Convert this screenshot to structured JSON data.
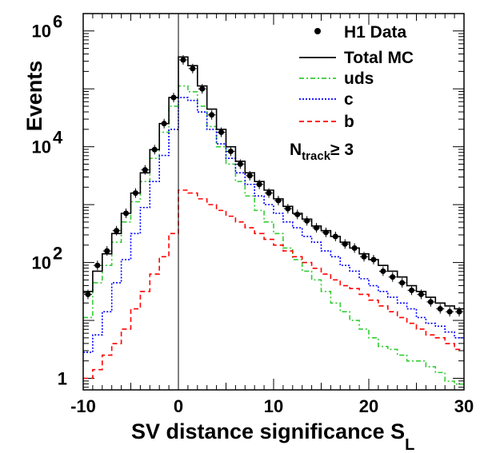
{
  "chart_data": {
    "type": "line",
    "xlabel": "SV distance significance S",
    "xlabel_sub": "L",
    "ylabel": "Events",
    "xlim": [
      -10,
      30
    ],
    "ylim_log10": [
      -0.2,
      6.3
    ],
    "yscale": "log",
    "legend_position": "top-right",
    "x_ticks": [
      {
        "value": -10,
        "label": "-10"
      },
      {
        "value": 0,
        "label": "0"
      },
      {
        "value": 10,
        "label": "10"
      },
      {
        "value": 20,
        "label": "20"
      },
      {
        "value": 30,
        "label": "30"
      }
    ],
    "y_ticks": [
      {
        "exp": 0,
        "base": "1",
        "sup": ""
      },
      {
        "exp": 2,
        "base": "10",
        "sup": "2"
      },
      {
        "exp": 4,
        "base": "10",
        "sup": "4"
      },
      {
        "exp": 6,
        "base": "10",
        "sup": "6"
      }
    ],
    "bin_edges": [
      -10,
      -9,
      -8,
      -7,
      -6,
      -5,
      -4,
      -3,
      -2,
      -1,
      0,
      1,
      2,
      3,
      4,
      5,
      6,
      7,
      8,
      9,
      10,
      11,
      12,
      13,
      14,
      15,
      16,
      17,
      18,
      19,
      20,
      21,
      22,
      23,
      24,
      25,
      26,
      27,
      28,
      29,
      30
    ],
    "series": [
      {
        "name": "H1 Data",
        "style": "points",
        "color": "#000000",
        "log10": [
          1.45,
          1.95,
          2.2,
          2.55,
          2.85,
          3.2,
          3.6,
          3.95,
          4.4,
          4.85,
          5.5,
          5.35,
          5.0,
          4.55,
          4.25,
          3.92,
          3.7,
          3.5,
          3.35,
          3.2,
          3.07,
          2.93,
          2.83,
          2.72,
          2.6,
          2.52,
          2.45,
          2.32,
          2.25,
          2.1,
          2.05,
          1.85,
          1.75,
          1.65,
          1.52,
          1.45,
          1.32,
          1.2,
          1.15,
          1.15
        ]
      },
      {
        "name": "Total MC",
        "style": "solid",
        "color": "#000000",
        "log10": [
          1.5,
          1.85,
          2.15,
          2.5,
          2.85,
          3.2,
          3.55,
          3.95,
          4.4,
          4.85,
          5.55,
          5.4,
          5.05,
          4.65,
          4.3,
          4.0,
          3.75,
          3.55,
          3.4,
          3.25,
          3.1,
          2.97,
          2.85,
          2.75,
          2.63,
          2.55,
          2.45,
          2.35,
          2.25,
          2.15,
          2.05,
          1.95,
          1.85,
          1.75,
          1.6,
          1.5,
          1.4,
          1.3,
          1.25,
          1.2
        ]
      },
      {
        "name": "uds",
        "style": "dashdot",
        "color": "#33cc33",
        "log10": [
          1.05,
          1.65,
          1.95,
          2.35,
          2.7,
          3.05,
          3.4,
          3.8,
          4.25,
          4.7,
          5.05,
          4.95,
          4.7,
          4.35,
          4.0,
          3.7,
          3.4,
          3.15,
          2.9,
          2.7,
          2.5,
          2.25,
          2.05,
          1.85,
          1.7,
          1.5,
          1.3,
          1.15,
          1.0,
          0.85,
          0.7,
          0.55,
          0.5,
          0.4,
          0.3,
          0.3,
          0.2,
          0.1,
          -0.05,
          -0.1
        ]
      },
      {
        "name": "c",
        "style": "dotted",
        "color": "#0000ff",
        "log10": [
          0.45,
          0.75,
          1.15,
          1.65,
          2.05,
          2.5,
          2.95,
          3.4,
          3.85,
          4.3,
          4.85,
          4.8,
          4.6,
          4.3,
          4.05,
          3.8,
          3.55,
          3.35,
          3.15,
          3.0,
          2.85,
          2.7,
          2.6,
          2.45,
          2.35,
          2.2,
          2.1,
          1.95,
          1.85,
          1.72,
          1.6,
          1.5,
          1.4,
          1.3,
          1.2,
          1.05,
          0.95,
          0.9,
          0.8,
          0.7
        ]
      },
      {
        "name": "b",
        "style": "dashed",
        "color": "#ff0000",
        "log10": [
          0.0,
          0.15,
          0.4,
          0.6,
          0.85,
          1.2,
          1.5,
          1.8,
          2.1,
          2.5,
          3.25,
          3.2,
          3.1,
          3.0,
          2.9,
          2.8,
          2.7,
          2.6,
          2.5,
          2.4,
          2.3,
          2.2,
          2.1,
          2.0,
          1.9,
          1.8,
          1.7,
          1.6,
          1.55,
          1.45,
          1.35,
          1.25,
          1.15,
          1.05,
          0.95,
          0.85,
          0.75,
          0.7,
          0.6,
          0.5
        ]
      }
    ],
    "annotation": {
      "main": "N",
      "sub": "track",
      "rest": "≥ 3"
    }
  }
}
